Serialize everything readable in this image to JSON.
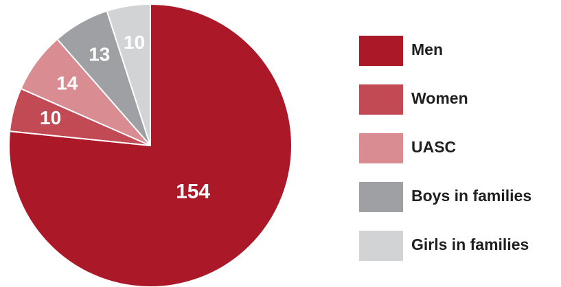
{
  "chart_data": {
    "type": "pie",
    "categories": [
      "Men",
      "Women",
      "UASC",
      "Boys in families",
      "Girls in families"
    ],
    "values": [
      154,
      10,
      14,
      13,
      10
    ],
    "colors": [
      "#ab1928",
      "#c24a55",
      "#d98c92",
      "#9ea0a4",
      "#d2d3d5"
    ],
    "label_color": "#ffffff",
    "slice_border_color": "#ffffff",
    "start_angle_deg": 0,
    "direction": "clockwise",
    "legend": {
      "position": "right",
      "items": [
        "Men",
        "Women",
        "UASC",
        "Boys in families",
        "Girls in families"
      ]
    }
  }
}
